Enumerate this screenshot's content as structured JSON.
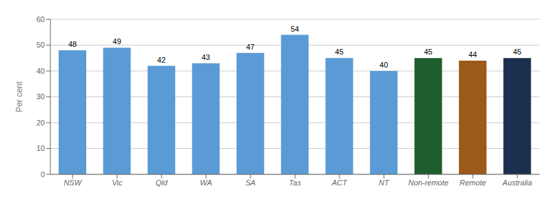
{
  "chart_data": {
    "type": "bar",
    "categories": [
      "NSW",
      "Vic",
      "Qld",
      "WA",
      "SA",
      "Tas",
      "ACT",
      "NT",
      "Non-remote",
      "Remote",
      "Australia"
    ],
    "values": [
      48,
      49,
      42,
      43,
      47,
      54,
      45,
      40,
      45,
      44,
      45
    ],
    "colors": [
      "#5b9bd5",
      "#5b9bd5",
      "#5b9bd5",
      "#5b9bd5",
      "#5b9bd5",
      "#5b9bd5",
      "#5b9bd5",
      "#5b9bd5",
      "#1e5e2e",
      "#9b5a1a",
      "#1b2f4e"
    ],
    "ylabel": "Per cent",
    "ylim": [
      0,
      60
    ],
    "yticks": [
      0,
      10,
      20,
      30,
      40,
      50,
      60
    ],
    "grid": true,
    "data_labels": true
  }
}
